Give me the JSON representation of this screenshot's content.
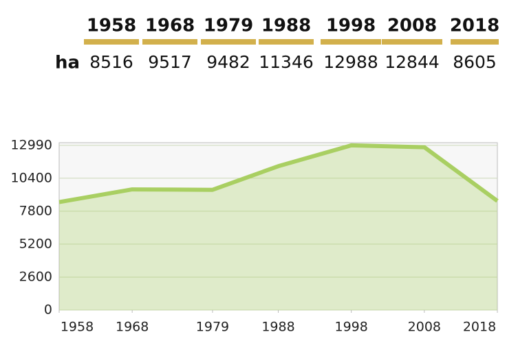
{
  "table": {
    "columns": [
      "1958",
      "1968",
      "1979",
      "1988",
      "1998",
      "2008",
      "2018"
    ],
    "row_label": "ha",
    "values": [
      "8516",
      "9517",
      "9482",
      "11346",
      "12988",
      "12844",
      "8605"
    ]
  },
  "chart_data": {
    "type": "area",
    "x": [
      1958,
      1968,
      1979,
      1988,
      1998,
      2008,
      2018
    ],
    "series": [
      {
        "values": [
          8516,
          9517,
          9482,
          11346,
          12988,
          12844,
          8605
        ],
        "color": "#a9cf62"
      }
    ],
    "xlim": [
      1958,
      2018
    ],
    "xticks": [
      1958,
      1968,
      1979,
      1988,
      1998,
      2008,
      2018
    ],
    "ylim": [
      0,
      13200
    ],
    "yticks": [
      0,
      2600,
      5200,
      7800,
      10400,
      12990
    ],
    "grid": true
  }
}
